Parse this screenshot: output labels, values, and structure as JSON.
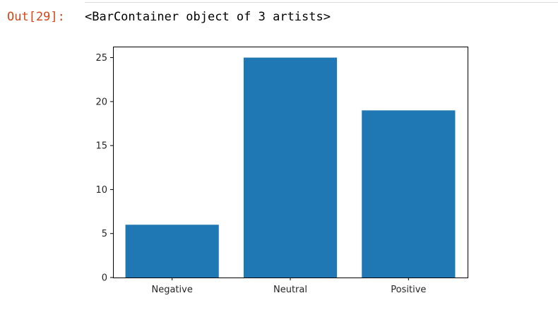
{
  "cell": {
    "out_prompt": "Out[29]:",
    "output_text": "<BarContainer object of 3 artists>"
  },
  "colors": {
    "bar": "#1f77b4",
    "prompt": "#d84315"
  },
  "chart_data": {
    "type": "bar",
    "title": "",
    "xlabel": "",
    "ylabel": "",
    "categories": [
      "Negative",
      "Neutral",
      "Positive"
    ],
    "values": [
      6,
      25,
      19
    ],
    "ylim": [
      0,
      26.25
    ],
    "yticks": [
      0,
      5,
      10,
      15,
      20,
      25
    ],
    "grid": false
  }
}
